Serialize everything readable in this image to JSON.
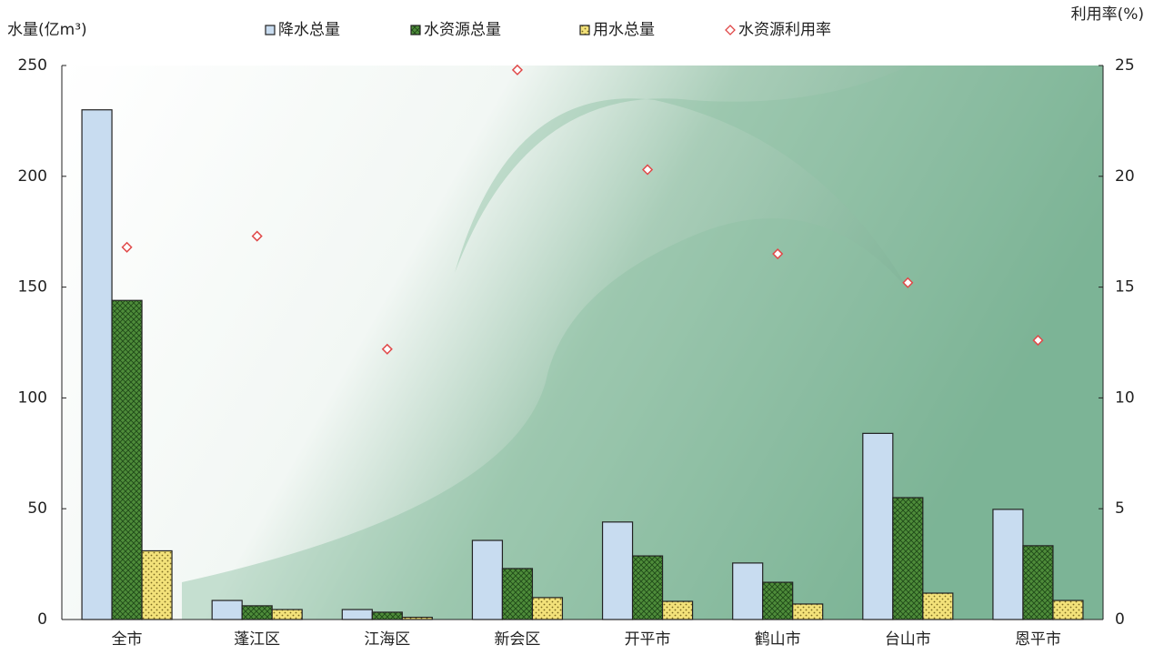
{
  "chart_data": {
    "type": "bar",
    "y_label": "水量(亿m³)",
    "y2_label": "利用率(%)",
    "categories": [
      "全市",
      "蓬江区",
      "江海区",
      "新会区",
      "开平市",
      "鹤山市",
      "台山市",
      "恩平市"
    ],
    "series": [
      {
        "name": "降水总量",
        "type": "bar",
        "color": "#c8dcf0",
        "pattern": "none",
        "values": [
          230,
          8.6,
          4.5,
          35.7,
          44,
          25.5,
          84,
          49.7
        ]
      },
      {
        "name": "水资源总量",
        "type": "bar",
        "color": "#4e8c3a",
        "pattern": "crosshatch",
        "values": [
          144,
          6.2,
          3.3,
          23,
          28.7,
          16.8,
          55,
          33.3
        ]
      },
      {
        "name": "用水总量",
        "type": "bar",
        "color": "#f3e27a",
        "pattern": "dots",
        "values": [
          31,
          4.5,
          1,
          9.9,
          8.2,
          7,
          11.9,
          8.6
        ]
      },
      {
        "name": "水资源利用率",
        "type": "scatter",
        "axis": "y2",
        "color": "#e04848",
        "values": [
          16.8,
          17.3,
          12.2,
          24.8,
          20.3,
          16.5,
          15.2,
          12.6
        ]
      }
    ],
    "ylim": [
      0,
      250
    ],
    "yticks": [
      0,
      50,
      100,
      150,
      200,
      250
    ],
    "y2lim": [
      0,
      25
    ],
    "y2ticks": [
      0,
      5,
      10,
      15,
      20,
      25
    ]
  }
}
